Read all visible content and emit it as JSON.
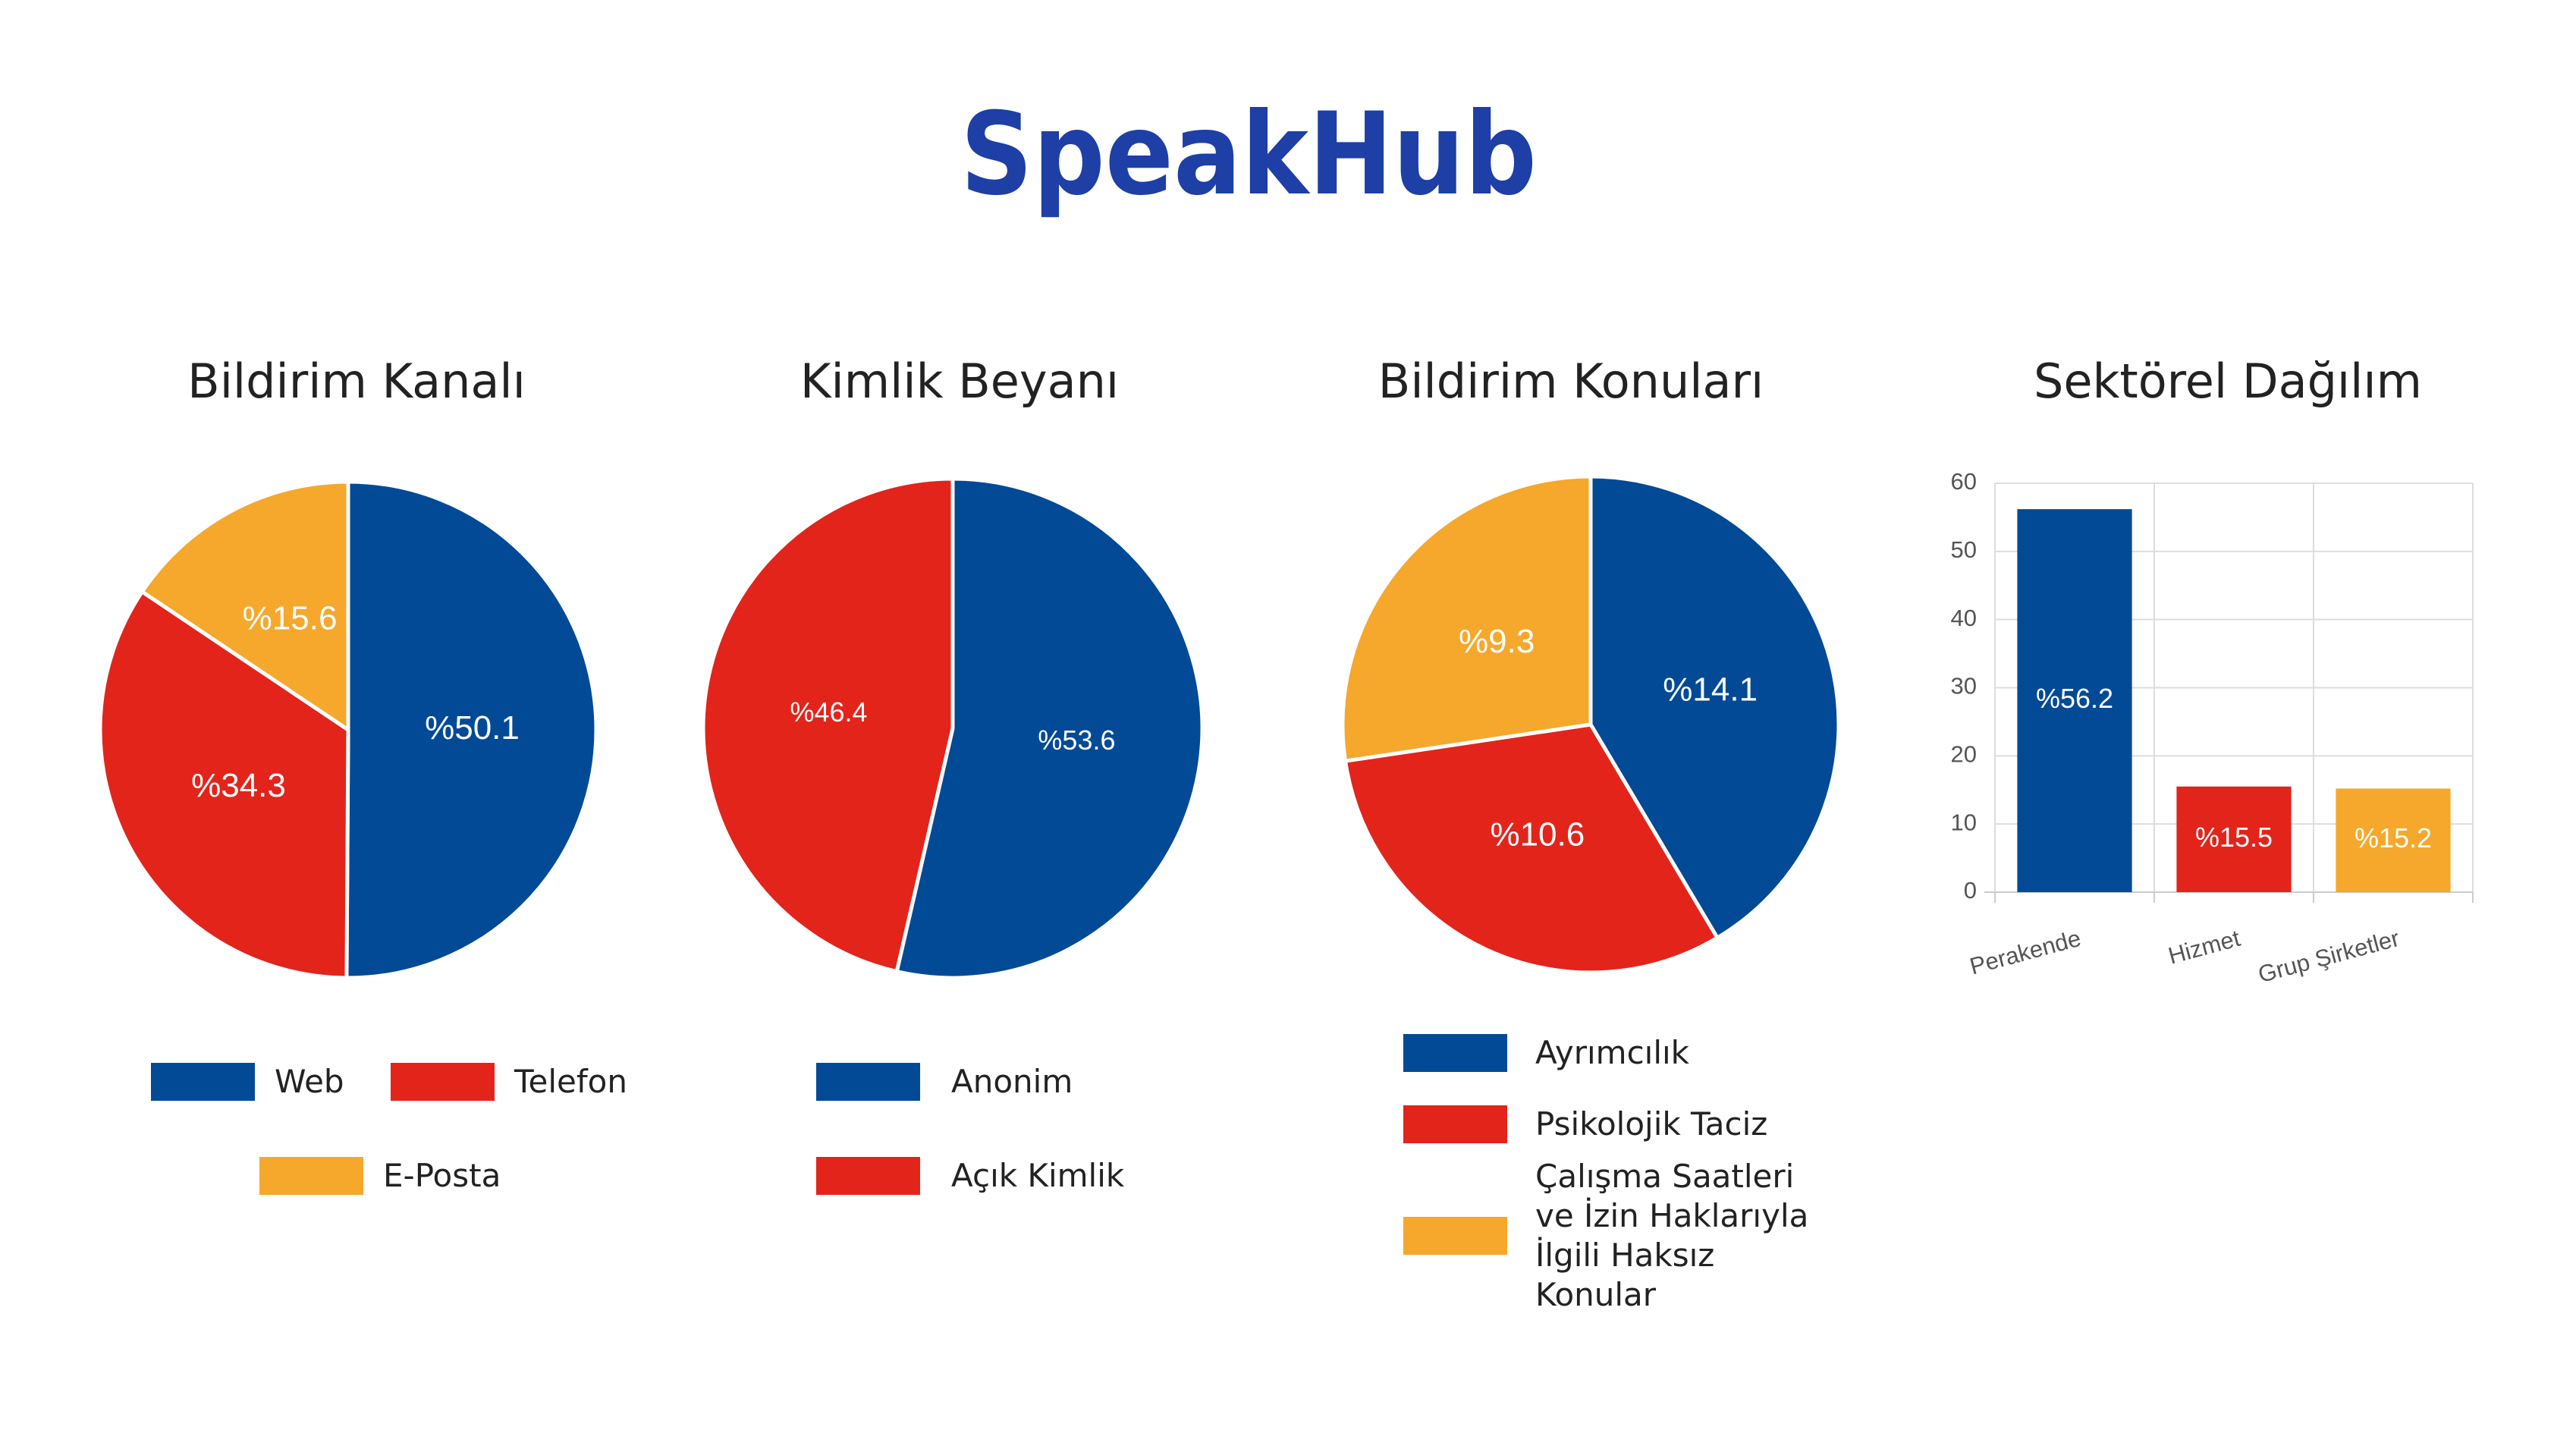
{
  "logo": "SpeakHub",
  "chart_data": [
    {
      "type": "pie",
      "title": "Bildirim Kanalı",
      "categories": [
        "Web",
        "Telefon",
        "E-Posta"
      ],
      "values": [
        50.1,
        34.3,
        15.6
      ],
      "value_labels": [
        "%50.1",
        "%34.3",
        "%15.6"
      ],
      "colors": [
        "#034a96",
        "#e3241b",
        "#f5a82c"
      ]
    },
    {
      "type": "pie",
      "title": "Kimlik Beyanı",
      "categories": [
        "Anonim",
        "Açık Kimlik"
      ],
      "values": [
        53.6,
        46.4
      ],
      "value_labels": [
        "%53.6",
        "%46.4"
      ],
      "colors": [
        "#034a96",
        "#e3241b"
      ]
    },
    {
      "type": "pie",
      "title": "Bildirim Konuları",
      "categories": [
        "Ayrımcılık",
        "Psikolojik Taciz",
        "Çalışma Saatleri ve İzin Haklarıyla İlgili Haksız Konular"
      ],
      "values": [
        14.1,
        10.6,
        9.3
      ],
      "value_labels": [
        "%14.1",
        "%10.6",
        "%9.3"
      ],
      "colors": [
        "#034a96",
        "#e3241b",
        "#f5a82c"
      ]
    },
    {
      "type": "bar",
      "title": "Sektörel Dağılım",
      "categories": [
        "Perakende",
        "Hizmet",
        "Grup Şirketler"
      ],
      "values": [
        56.2,
        15.5,
        15.2
      ],
      "value_labels": [
        "%56.2",
        "%15.5",
        "%15.2"
      ],
      "colors": [
        "#034a96",
        "#e3241b",
        "#f5a82c"
      ],
      "ylim": [
        0,
        60
      ],
      "yticks": [
        0,
        10,
        20,
        30,
        40,
        50,
        60
      ],
      "grid": true
    }
  ]
}
